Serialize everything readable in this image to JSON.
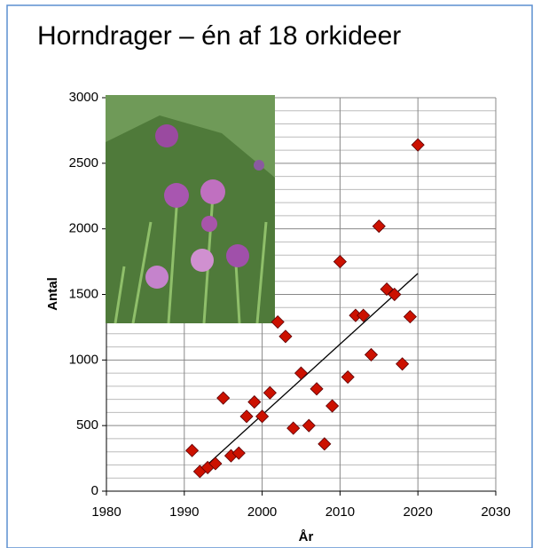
{
  "chart_data": {
    "type": "scatter",
    "title": "Horndrager – én af 18 orkideer",
    "x_label": "År",
    "y_label": "Antal",
    "xlim": [
      1980,
      2030
    ],
    "xticks": [
      1980,
      1990,
      2000,
      2010,
      2020,
      2030
    ],
    "ylim": [
      0,
      3000
    ],
    "yticks": [
      0,
      500,
      1000,
      1500,
      2000,
      2500,
      3000
    ],
    "y_minor_ticks": [
      100,
      200,
      300,
      400,
      600,
      700,
      800,
      900,
      1100,
      1200,
      1300,
      1400,
      1600,
      1700,
      1800,
      1900,
      2100,
      2200,
      2300,
      2400,
      2600,
      2700,
      2800,
      2900
    ],
    "grid": true,
    "series": [
      {
        "color": "#cc1100",
        "x": [
          1991,
          1992,
          1993,
          1994,
          1995,
          1996,
          1997,
          1998,
          1999,
          2000,
          2001,
          2002,
          2003,
          2004,
          2005,
          2006,
          2007,
          2008,
          2009,
          2010,
          2011,
          2012,
          2013,
          2014,
          2015,
          2016,
          2017,
          2018,
          2019,
          2020
        ],
        "values": [
          310,
          150,
          180,
          210,
          710,
          270,
          290,
          570,
          680,
          570,
          750,
          1290,
          1180,
          480,
          900,
          500,
          780,
          360,
          650,
          1750,
          870,
          1340,
          1340,
          1040,
          2020,
          1540,
          1500,
          970,
          1330,
          2640
        ]
      }
    ],
    "trendline": {
      "x": [
        1992,
        2020
      ],
      "y": [
        150,
        1660
      ],
      "color": "#000000"
    }
  }
}
